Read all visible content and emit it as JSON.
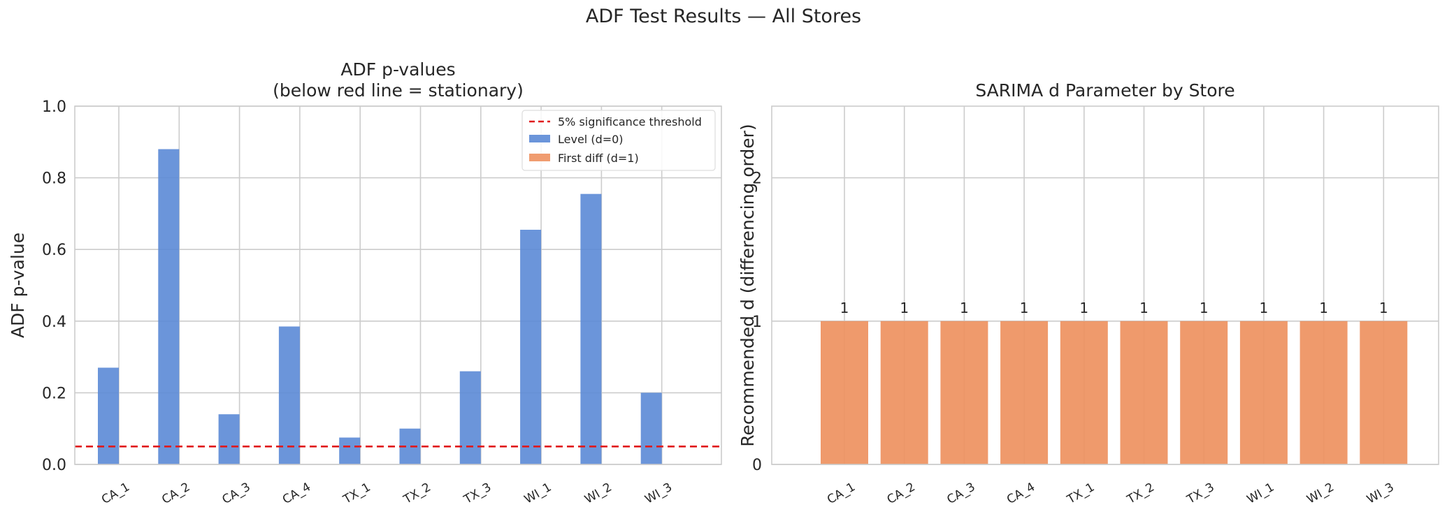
{
  "suptitle": "ADF Test Results — All Stores",
  "colors": {
    "level": "#5b89d6",
    "diff": "#ee9160",
    "threshold": "#e0191b",
    "grid": "#cccccc",
    "spine": "#cccccc",
    "text": "#262626"
  },
  "chart_data": [
    {
      "type": "bar",
      "title": "ADF p-values\n(below red line = stationary)",
      "xlabel": "",
      "ylabel": "ADF p-value",
      "categories": [
        "CA_1",
        "CA_2",
        "CA_3",
        "CA_4",
        "TX_1",
        "TX_2",
        "TX_3",
        "WI_1",
        "WI_2",
        "WI_3"
      ],
      "series": [
        {
          "name": "Level (d=0)",
          "values": [
            0.27,
            0.88,
            0.14,
            0.385,
            0.075,
            0.1,
            0.26,
            0.655,
            0.755,
            0.2
          ]
        },
        {
          "name": "First diff (d=1)",
          "values": [
            0.001,
            0.001,
            0.001,
            0.001,
            0.001,
            0.001,
            0.001,
            0.001,
            0.001,
            0.001
          ]
        }
      ],
      "threshold": {
        "name": "5% significance threshold",
        "value": 0.05,
        "style": "dashed"
      },
      "ylim": [
        0,
        1.0
      ],
      "yticks": [
        "0.0",
        "0.2",
        "0.4",
        "0.6",
        "0.8",
        "1.0"
      ],
      "grid": true,
      "legend": "top-right"
    },
    {
      "type": "bar",
      "title": "SARIMA d Parameter by Store",
      "xlabel": "",
      "ylabel": "Recommended d (differencing order)",
      "categories": [
        "CA_1",
        "CA_2",
        "CA_3",
        "CA_4",
        "TX_1",
        "TX_2",
        "TX_3",
        "WI_1",
        "WI_2",
        "WI_3"
      ],
      "values": [
        1,
        1,
        1,
        1,
        1,
        1,
        1,
        1,
        1,
        1
      ],
      "data_labels": [
        "1",
        "1",
        "1",
        "1",
        "1",
        "1",
        "1",
        "1",
        "1",
        "1"
      ],
      "ylim": [
        0,
        2.5
      ],
      "yticks": [
        "0",
        "1",
        "2"
      ],
      "grid": true,
      "legend": "none"
    }
  ]
}
